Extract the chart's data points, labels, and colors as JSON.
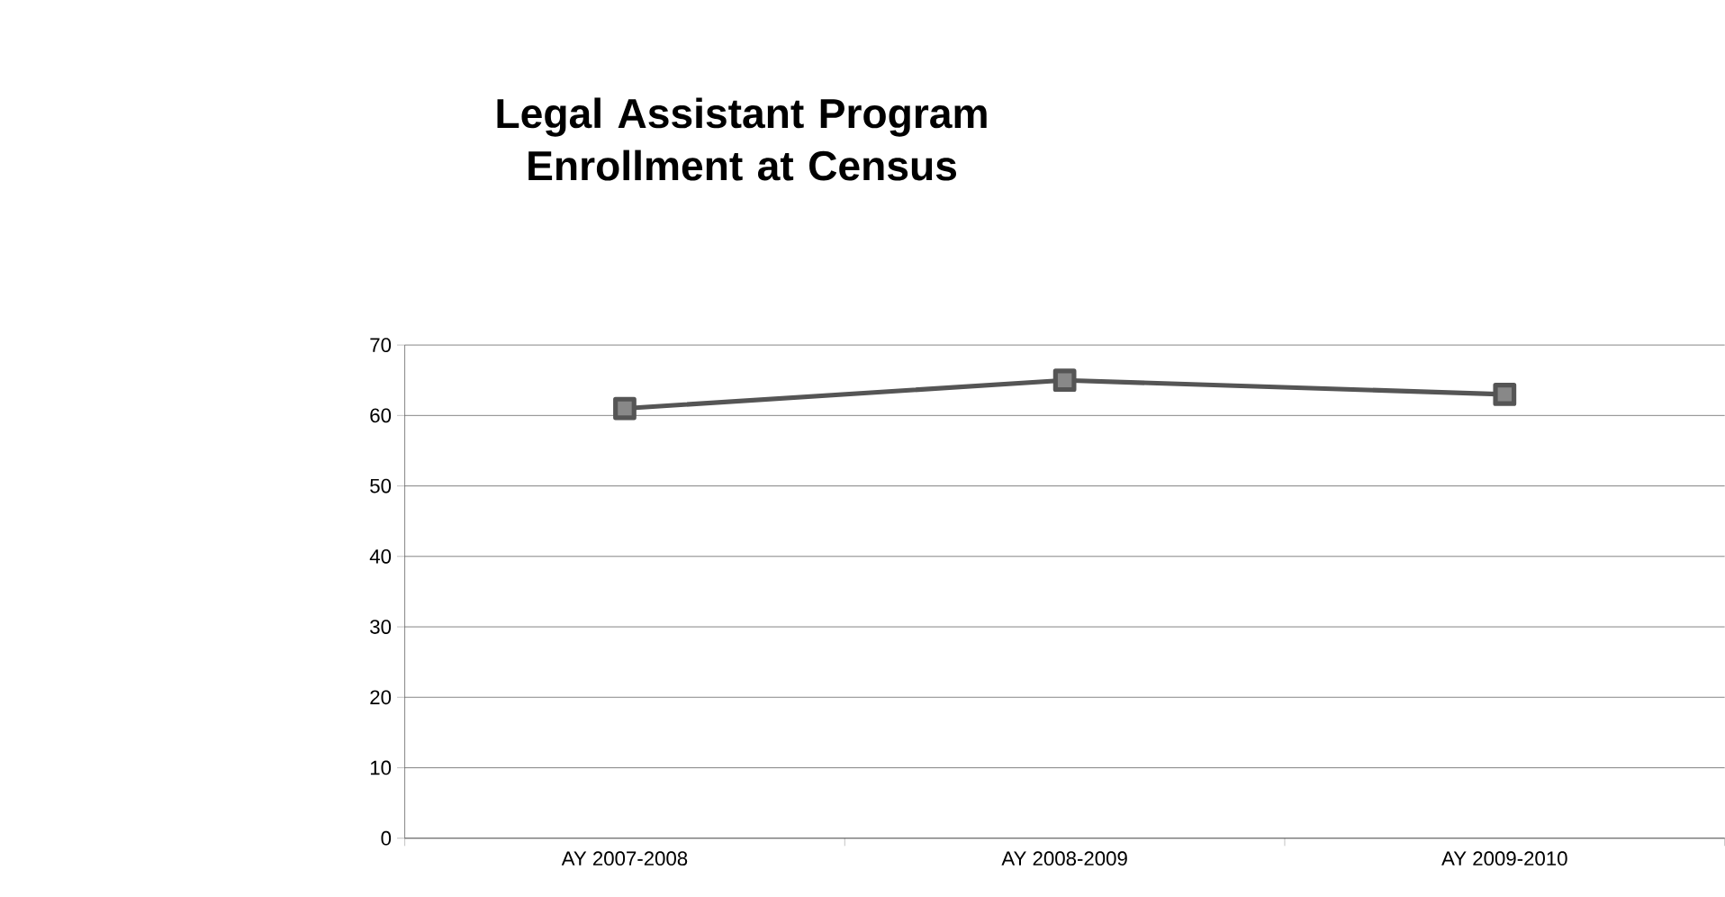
{
  "chart_data": {
    "type": "line",
    "title": "Legal Assistant Program Enrollment at Census",
    "categories": [
      "AY 2007-2008",
      "AY 2008-2009",
      "AY 2009-2010"
    ],
    "series": [
      {
        "color": "#555555",
        "values": [
          61,
          65,
          63
        ]
      }
    ],
    "ylim": [
      0,
      70
    ],
    "yticks": [
      0,
      10,
      20,
      30,
      40,
      50,
      60,
      70
    ],
    "grid": "y",
    "marker": "square",
    "line_style": "solid"
  }
}
